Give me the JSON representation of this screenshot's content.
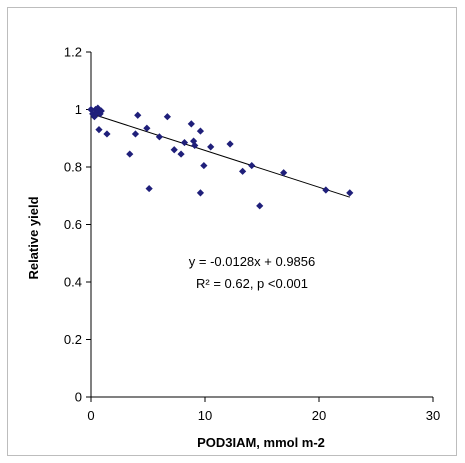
{
  "chart_data": {
    "type": "scatter",
    "xlabel": "POD3IAM, mmol m-2",
    "ylabel": "Relative yield",
    "xlim": [
      0,
      30
    ],
    "ylim": [
      0,
      1.2
    ],
    "xticks": [
      0,
      10,
      20,
      30
    ],
    "yticks": [
      0,
      0.2,
      0.4,
      0.6,
      0.8,
      1,
      1.2
    ],
    "grid": false,
    "legend": "none",
    "marker_color": "#1f1f7a",
    "points": [
      {
        "x": 0.0,
        "y": 1.0
      },
      {
        "x": 0.15,
        "y": 0.985
      },
      {
        "x": 0.3,
        "y": 0.975
      },
      {
        "x": 0.4,
        "y": 1.0
      },
      {
        "x": 0.5,
        "y": 0.99
      },
      {
        "x": 0.6,
        "y": 1.005
      },
      {
        "x": 0.7,
        "y": 0.995
      },
      {
        "x": 0.8,
        "y": 0.985
      },
      {
        "x": 0.9,
        "y": 0.995
      },
      {
        "x": 0.7,
        "y": 0.93
      },
      {
        "x": 1.4,
        "y": 0.915
      },
      {
        "x": 3.4,
        "y": 0.845
      },
      {
        "x": 3.9,
        "y": 0.915
      },
      {
        "x": 4.1,
        "y": 0.98
      },
      {
        "x": 4.9,
        "y": 0.935
      },
      {
        "x": 5.1,
        "y": 0.725
      },
      {
        "x": 6.0,
        "y": 0.905
      },
      {
        "x": 6.7,
        "y": 0.975
      },
      {
        "x": 7.3,
        "y": 0.86
      },
      {
        "x": 7.9,
        "y": 0.845
      },
      {
        "x": 8.2,
        "y": 0.885
      },
      {
        "x": 8.8,
        "y": 0.95
      },
      {
        "x": 9.0,
        "y": 0.89
      },
      {
        "x": 9.1,
        "y": 0.875
      },
      {
        "x": 9.6,
        "y": 0.925
      },
      {
        "x": 9.6,
        "y": 0.71
      },
      {
        "x": 9.9,
        "y": 0.805
      },
      {
        "x": 10.5,
        "y": 0.87
      },
      {
        "x": 12.2,
        "y": 0.88
      },
      {
        "x": 13.3,
        "y": 0.785
      },
      {
        "x": 14.1,
        "y": 0.805
      },
      {
        "x": 14.8,
        "y": 0.665
      },
      {
        "x": 16.9,
        "y": 0.78
      },
      {
        "x": 20.6,
        "y": 0.72
      },
      {
        "x": 22.7,
        "y": 0.71
      }
    ],
    "trendline": {
      "slope": -0.0128,
      "intercept": 0.9856,
      "x_range": [
        0,
        22.7
      ]
    },
    "annotations": [
      "y = -0.0128x + 0.9856",
      "R² = 0.62, p <0.001"
    ]
  }
}
